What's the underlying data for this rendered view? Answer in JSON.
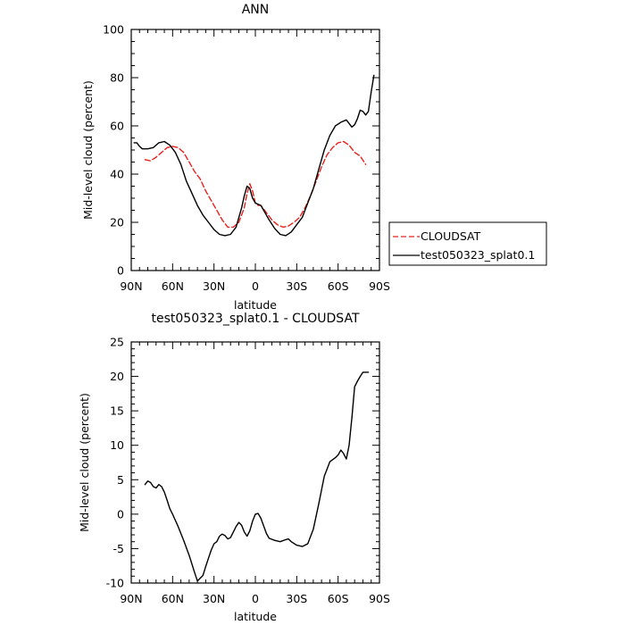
{
  "colors": {
    "cloudsat": "#e8201c",
    "model": "#000000"
  },
  "chart_data": [
    {
      "type": "line",
      "title": "ANN",
      "xlabel": "latitude",
      "ylabel": "Mid-level cloud (percent)",
      "x_tick_values": [
        90,
        60,
        30,
        0,
        -30,
        -60,
        -90
      ],
      "x_tick_labels": [
        "90N",
        "60N",
        "30N",
        "0",
        "30S",
        "60S",
        "90S"
      ],
      "xlim": [
        90,
        -90
      ],
      "ylim": [
        0,
        100
      ],
      "y_ticks": [
        0,
        20,
        40,
        60,
        80,
        100
      ],
      "legend_position": "right",
      "series": [
        {
          "name": "CLOUDSAT",
          "style": "dashed",
          "color": "#e8201c",
          "x": [
            80,
            76,
            72,
            68,
            64,
            60,
            56,
            52,
            48,
            44,
            40,
            36,
            32,
            28,
            24,
            20,
            16,
            12,
            8,
            6,
            4,
            2,
            0,
            -2,
            -4,
            -8,
            -12,
            -16,
            -20,
            -24,
            -28,
            -32,
            -36,
            -40,
            -44,
            -48,
            -52,
            -56,
            -60,
            -64,
            -68,
            -72,
            -76,
            -80
          ],
          "values": [
            46,
            45.5,
            47,
            49,
            51,
            51.5,
            51,
            49,
            45,
            41,
            38,
            33,
            29,
            25,
            21,
            18,
            18,
            20,
            26,
            32,
            36,
            33,
            28,
            27,
            27,
            24,
            21,
            19,
            18,
            18.5,
            20,
            22,
            26,
            31,
            37,
            43,
            48,
            51,
            53,
            53.5,
            52,
            49,
            47.5,
            44
          ]
        },
        {
          "name": "test050323_splat0.1",
          "style": "solid",
          "color": "#000000",
          "x": [
            88,
            86,
            84,
            82,
            78,
            74,
            70,
            66,
            62,
            58,
            54,
            50,
            46,
            42,
            38,
            34,
            30,
            26,
            22,
            18,
            14,
            10,
            8,
            6,
            4,
            2,
            0,
            -2,
            -4,
            -6,
            -10,
            -14,
            -18,
            -22,
            -26,
            -30,
            -34,
            -38,
            -42,
            -46,
            -50,
            -54,
            -58,
            -62,
            -66,
            -68,
            -70,
            -72,
            -74,
            -76,
            -78,
            -80,
            -82,
            -84,
            -86
          ],
          "values": [
            53,
            53,
            51.5,
            50.5,
            50.5,
            51,
            53,
            53.5,
            52,
            49,
            44,
            37,
            32,
            27,
            23,
            20,
            17,
            15,
            14.5,
            15,
            18,
            26,
            31,
            35,
            34,
            30,
            28,
            27.5,
            27,
            25,
            21,
            17.5,
            15,
            14.5,
            16,
            19,
            22,
            28,
            34,
            42,
            50,
            56,
            60,
            61.5,
            62.5,
            61,
            59.5,
            60.5,
            63,
            66.5,
            66,
            64.5,
            66,
            74,
            81
          ]
        }
      ]
    },
    {
      "type": "line",
      "title": "test050323_splat0.1 - CLOUDSAT",
      "xlabel": "latitude",
      "ylabel": "Mid-level cloud (percent)",
      "x_tick_values": [
        90,
        60,
        30,
        0,
        -30,
        -60,
        -90
      ],
      "x_tick_labels": [
        "90N",
        "60N",
        "30N",
        "0",
        "30S",
        "60S",
        "90S"
      ],
      "xlim": [
        90,
        -90
      ],
      "ylim": [
        -10,
        25
      ],
      "y_ticks": [
        -10,
        -5,
        0,
        5,
        10,
        15,
        20,
        25
      ],
      "series": [
        {
          "style": "solid",
          "color": "#000000",
          "x": [
            80,
            78,
            76,
            74,
            72,
            70,
            68,
            66,
            64,
            62,
            60,
            56,
            52,
            48,
            44,
            42,
            40,
            38,
            36,
            34,
            32,
            30,
            28,
            26,
            24,
            22,
            20,
            18,
            16,
            14,
            12,
            10,
            8,
            6,
            4,
            2,
            0,
            -2,
            -4,
            -6,
            -8,
            -10,
            -14,
            -18,
            -22,
            -24,
            -26,
            -30,
            -34,
            -38,
            -42,
            -46,
            -50,
            -54,
            -58,
            -60,
            -62,
            -64,
            -66,
            -68,
            -70,
            -72,
            -74,
            -76,
            -78,
            -80,
            -82
          ],
          "values": [
            4.3,
            4.8,
            4.6,
            4.0,
            3.8,
            4.3,
            4.0,
            3.2,
            2.0,
            0.8,
            0.0,
            -1.8,
            -3.8,
            -6.0,
            -8.5,
            -9.7,
            -9.3,
            -8.9,
            -7.6,
            -6.4,
            -5.2,
            -4.3,
            -4.0,
            -3.2,
            -2.9,
            -3.1,
            -3.6,
            -3.4,
            -2.6,
            -1.8,
            -1.2,
            -1.6,
            -2.6,
            -3.2,
            -2.4,
            -1.0,
            0.0,
            0.1,
            -0.6,
            -1.7,
            -2.8,
            -3.5,
            -3.8,
            -4.0,
            -3.7,
            -3.6,
            -4.0,
            -4.5,
            -4.7,
            -4.3,
            -2.2,
            1.5,
            5.5,
            7.6,
            8.2,
            8.6,
            9.3,
            8.8,
            8.0,
            10.0,
            14.0,
            18.5,
            19.3,
            20.0,
            20.6,
            20.6,
            20.6
          ]
        }
      ]
    }
  ]
}
